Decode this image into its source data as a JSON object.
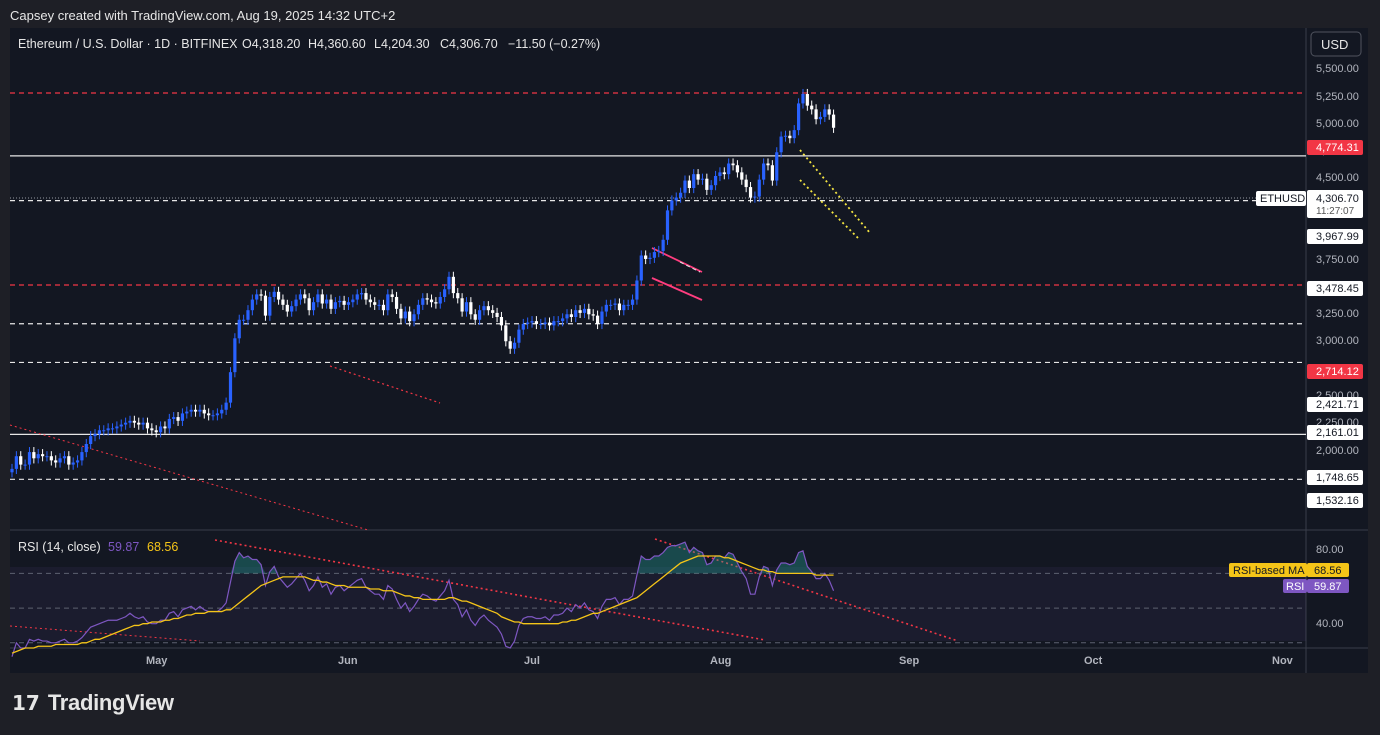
{
  "header": {
    "text": "Capsey created with TradingView.com, Aug 19, 2025 14:32 UTC+2"
  },
  "legend": {
    "symbol": "Ethereum / U.S. Dollar · 1D · BITFINEX",
    "open": "O4,318.20",
    "high": "H4,360.60",
    "low": "L4,204.30",
    "close": "C4,306.70",
    "change": "−11.50 (−0.27%)"
  },
  "currency_button": "USD",
  "price_axis": {
    "ticks": [
      "5,500.00",
      "5,250.00",
      "5,000.00",
      "4,750.00",
      "4,500.00",
      "3,750.00",
      "3,250.00",
      "3,000.00",
      "2,500.00",
      "2,250.00",
      "2,000.00"
    ]
  },
  "level_labels": [
    "4,774.31",
    "3,967.99",
    "3,478.45",
    "2,714.12",
    "2,421.71",
    "2,161.01",
    "1,748.65",
    "1,532.16"
  ],
  "last_price": {
    "ticker": "ETHUSD",
    "price": "4,306.70",
    "countdown": "11:27:07"
  },
  "rsi": {
    "title": "RSI (14, close)",
    "value": "59.87",
    "ma_value": "68.56",
    "ma_label": "RSI-based MA",
    "rsi_label": "RSI",
    "ticks": [
      "80.00",
      "40.00"
    ]
  },
  "time_axis": [
    "May",
    "Jun",
    "Jul",
    "Aug",
    "Sep",
    "Oct",
    "Nov"
  ],
  "footer": {
    "brand": "TradingView"
  },
  "colors": {
    "background": "#131722",
    "up": "#2962ff",
    "down": "#ffffff",
    "red_level": "#f23645",
    "rsi": "#7e57c2",
    "rsi_ma": "#f5c518",
    "trend_yellow": "#f5e642",
    "trend_pink": "#ff3d7f"
  },
  "chart_data": {
    "type": "candlestick",
    "symbol": "ETHUSD",
    "interval": "1D",
    "x_start": "2025-04-01",
    "ylim": [
      1320,
      5780
    ],
    "y_scale": "log",
    "horizontal_levels": [
      {
        "price": 4774.31,
        "style": "dashed",
        "color": "red"
      },
      {
        "price": 3967.99,
        "style": "solid",
        "color": "white"
      },
      {
        "price": 3478.45,
        "style": "dashed",
        "color": "white"
      },
      {
        "price": 2714.12,
        "style": "dashed",
        "color": "red"
      },
      {
        "price": 2421.71,
        "style": "dashed",
        "color": "white"
      },
      {
        "price": 2161.01,
        "style": "dashed",
        "color": "white"
      },
      {
        "price": 1748.65,
        "style": "solid",
        "color": "white"
      },
      {
        "price": 1532.16,
        "style": "dashed",
        "color": "white"
      }
    ],
    "closes": [
      1580,
      1640,
      1600,
      1600,
      1660,
      1630,
      1650,
      1640,
      1640,
      1620,
      1610,
      1630,
      1640,
      1600,
      1610,
      1620,
      1660,
      1700,
      1740,
      1750,
      1770,
      1770,
      1780,
      1780,
      1790,
      1800,
      1810,
      1820,
      1810,
      1800,
      1810,
      1780,
      1770,
      1760,
      1790,
      1780,
      1830,
      1840,
      1820,
      1860,
      1870,
      1880,
      1870,
      1880,
      1860,
      1850,
      1850,
      1860,
      1880,
      1920,
      2100,
      2320,
      2450,
      2450,
      2520,
      2600,
      2640,
      2630,
      2480,
      2620,
      2660,
      2600,
      2560,
      2510,
      2550,
      2600,
      2640,
      2610,
      2520,
      2580,
      2640,
      2570,
      2600,
      2530,
      2580,
      2590,
      2560,
      2580,
      2600,
      2640,
      2650,
      2600,
      2580,
      2560,
      2560,
      2520,
      2640,
      2620,
      2530,
      2460,
      2510,
      2440,
      2490,
      2560,
      2610,
      2600,
      2580,
      2570,
      2620,
      2680,
      2780,
      2650,
      2610,
      2510,
      2580,
      2490,
      2450,
      2520,
      2550,
      2520,
      2500,
      2470,
      2410,
      2300,
      2250,
      2290,
      2380,
      2420,
      2430,
      2440,
      2420,
      2420,
      2430,
      2410,
      2440,
      2440,
      2460,
      2490,
      2470,
      2520,
      2500,
      2530,
      2490,
      2480,
      2420,
      2510,
      2560,
      2560,
      2570,
      2520,
      2560,
      2560,
      2600,
      2750,
      2960,
      2930,
      2940,
      2990,
      3000,
      3100,
      3380,
      3480,
      3510,
      3560,
      3690,
      3610,
      3760,
      3700,
      3710,
      3590,
      3640,
      3740,
      3780,
      3760,
      3880,
      3860,
      3780,
      3700,
      3620,
      3510,
      3520,
      3700,
      3880,
      3860,
      3690,
      4010,
      4200,
      4210,
      4180,
      4280,
      4630,
      4760,
      4600,
      4550,
      4420,
      4450,
      4550,
      4480,
      4310
    ],
    "rsi_values": [
      22,
      30,
      27,
      27,
      32,
      31,
      32,
      31,
      31,
      30,
      30,
      31,
      32,
      30,
      30,
      31,
      33,
      36,
      39,
      40,
      41,
      42,
      43,
      43,
      43,
      44,
      45,
      47,
      45,
      44,
      45,
      42,
      41,
      41,
      43,
      43,
      47,
      48,
      45,
      49,
      50,
      51,
      49,
      51,
      49,
      48,
      48,
      48,
      50,
      53,
      65,
      77,
      82,
      79,
      80,
      78,
      78,
      75,
      63,
      71,
      74,
      68,
      65,
      62,
      64,
      67,
      70,
      66,
      60,
      63,
      68,
      62,
      64,
      58,
      62,
      63,
      60,
      62,
      64,
      66,
      67,
      62,
      60,
      58,
      58,
      55,
      63,
      61,
      55,
      50,
      53,
      48,
      51,
      55,
      58,
      57,
      55,
      54,
      57,
      60,
      66,
      55,
      52,
      45,
      49,
      43,
      40,
      44,
      46,
      43,
      41,
      39,
      35,
      28,
      27,
      31,
      40,
      44,
      45,
      45,
      44,
      44,
      45,
      43,
      46,
      46,
      47,
      50,
      48,
      52,
      50,
      53,
      49,
      48,
      44,
      51,
      55,
      55,
      56,
      52,
      55,
      55,
      57,
      69,
      80,
      78,
      78,
      80,
      80,
      82,
      85,
      86,
      86,
      87,
      88,
      82,
      85,
      83,
      82,
      75,
      76,
      80,
      80,
      79,
      82,
      81,
      76,
      71,
      67,
      58,
      58,
      68,
      74,
      73,
      63,
      72,
      76,
      76,
      75,
      76,
      82,
      83,
      74,
      71,
      67,
      67,
      70,
      66,
      60
    ],
    "rsi_ma_values": [
      24,
      25,
      26,
      27,
      27,
      27,
      28,
      28,
      28,
      28,
      29,
      29,
      29,
      29,
      29,
      29,
      30,
      30,
      31,
      32,
      32,
      33,
      34,
      35,
      36,
      37,
      38,
      39,
      40,
      40,
      41,
      41,
      42,
      42,
      42,
      43,
      43,
      44,
      44,
      45,
      46,
      46,
      47,
      47,
      47,
      48,
      48,
      48,
      48,
      49,
      49,
      51,
      53,
      55,
      57,
      59,
      61,
      63,
      64,
      65,
      66,
      67,
      68,
      68,
      68,
      68,
      68,
      68,
      67,
      66,
      66,
      65,
      65,
      64,
      63,
      63,
      63,
      62,
      62,
      62,
      62,
      62,
      61,
      61,
      61,
      60,
      60,
      60,
      59,
      58,
      57,
      57,
      56,
      56,
      55,
      55,
      55,
      55,
      55,
      55,
      56,
      56,
      55,
      54,
      54,
      53,
      52,
      51,
      50,
      49,
      48,
      47,
      45,
      44,
      43,
      42,
      42,
      41,
      41,
      41,
      41,
      41,
      41,
      41,
      41,
      41,
      42,
      42,
      43,
      43,
      44,
      45,
      46,
      47,
      47,
      48,
      49,
      50,
      51,
      52,
      53,
      54,
      55,
      56,
      58,
      60,
      62,
      64,
      66,
      68,
      70,
      72,
      74,
      76,
      77,
      78,
      79,
      80,
      80,
      80,
      80,
      80,
      80,
      79,
      79,
      78,
      77,
      76,
      75,
      74,
      73,
      72,
      72,
      71,
      71,
      70,
      70,
      70,
      70,
      70,
      70,
      70,
      70,
      70,
      69,
      69,
      69,
      69,
      69
    ],
    "rsi_range": [
      27,
      95
    ],
    "rsi_levels": [
      70,
      50,
      30
    ]
  }
}
